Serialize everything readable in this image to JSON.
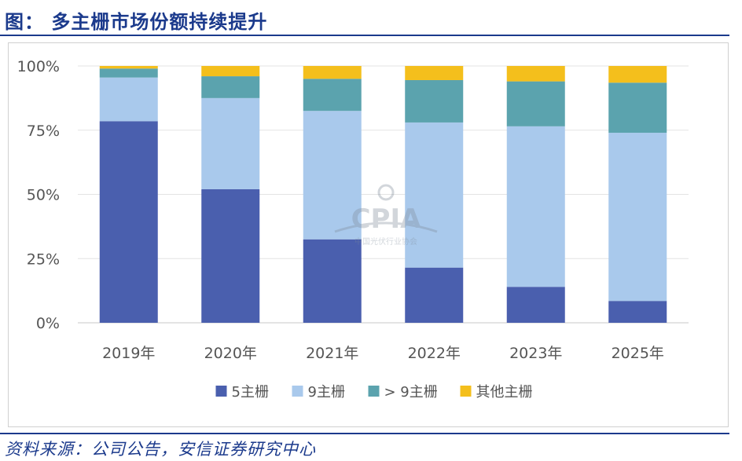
{
  "header": {
    "title": "图： 多主栅市场份额持续提升"
  },
  "footer": {
    "source": "资料来源：公司公告，安信证券研究中心"
  },
  "watermark": {
    "text": "CPIA",
    "subtext": "中国光伏行业协会"
  },
  "colors": {
    "5bb": "#4a5fae",
    "9bb": "#a9c9ec",
    "gt9bb": "#5ba3ae",
    "other": "#f4bf1c"
  },
  "chart_data": {
    "type": "bar",
    "stacked": true,
    "categories": [
      "2019年",
      "2020年",
      "2021年",
      "2022年",
      "2023年",
      "2025年"
    ],
    "series": [
      {
        "name": "5主栅",
        "color": "#4a5fae",
        "values": [
          78.5,
          52,
          32.5,
          21.5,
          14,
          8.5
        ]
      },
      {
        "name": "9主栅",
        "color": "#a9c9ec",
        "values": [
          17,
          35.5,
          50,
          56.5,
          62.5,
          65.5
        ]
      },
      {
        "name": "> 9主栅",
        "color": "#5ba3ae",
        "values": [
          3.5,
          8.5,
          12.5,
          16.5,
          17.5,
          19.5
        ]
      },
      {
        "name": "其他主栅",
        "color": "#f4bf1c",
        "values": [
          1,
          4,
          5,
          5.5,
          6,
          6.5
        ]
      }
    ],
    "y_ticks": [
      "0%",
      "25%",
      "50%",
      "75%",
      "100%"
    ],
    "ylim": [
      0,
      100
    ],
    "legend_position": "bottom",
    "grid": true
  }
}
